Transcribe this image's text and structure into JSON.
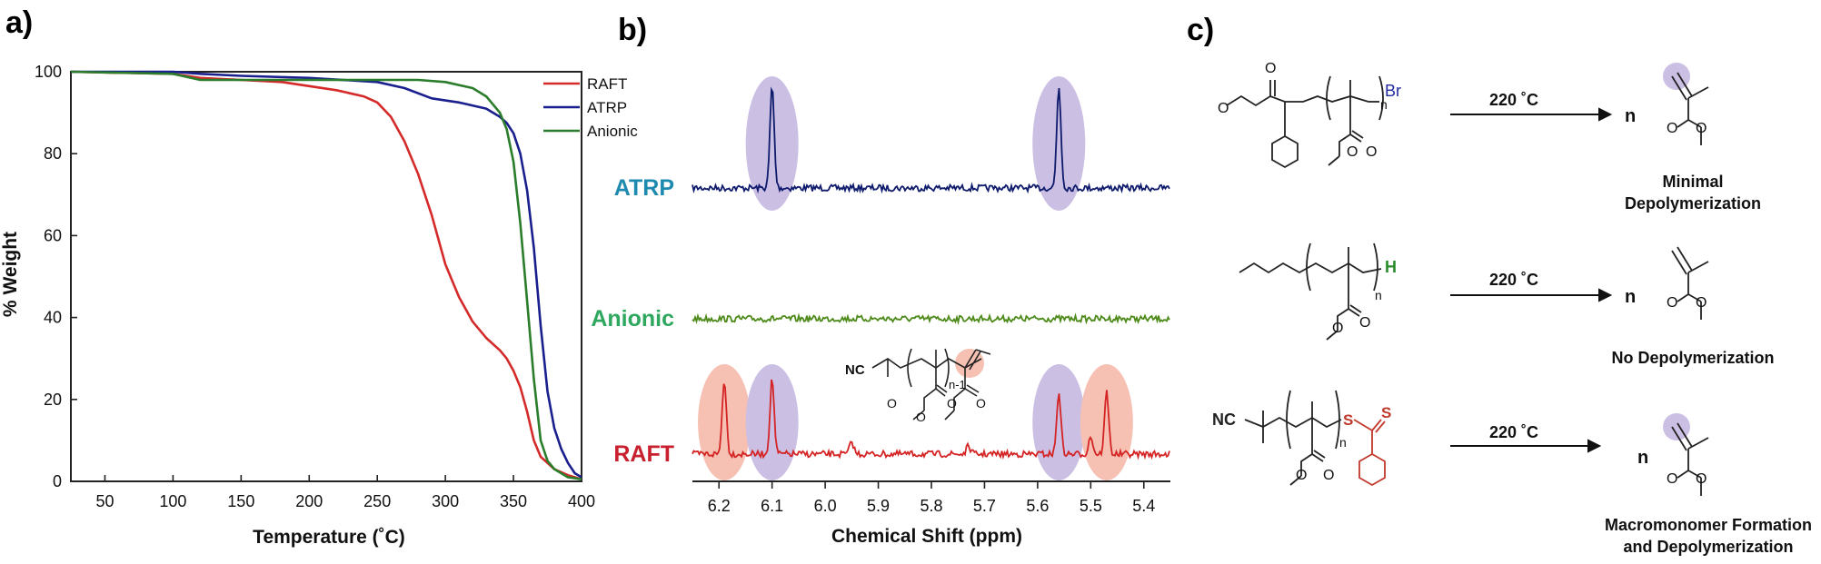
{
  "panels": {
    "a": "a)",
    "b": "b)",
    "c": "c)"
  },
  "chart_data": [
    {
      "type": "line",
      "panel": "a)",
      "xlabel": "Temperature (˚C)",
      "ylabel": "% Weight",
      "xlim": [
        25,
        400
      ],
      "ylim": [
        0,
        100
      ],
      "xticks": [
        50,
        100,
        150,
        200,
        250,
        300,
        350,
        400
      ],
      "yticks": [
        0,
        20,
        40,
        60,
        80,
        100
      ],
      "grid": false,
      "legend_position": "top-right",
      "series": [
        {
          "name": "RAFT",
          "color": "#d42a2a",
          "points": [
            [
              25,
              100
            ],
            [
              100,
              99.5
            ],
            [
              120,
              98.5
            ],
            [
              150,
              98
            ],
            [
              180,
              97.5
            ],
            [
              200,
              96.5
            ],
            [
              220,
              95.5
            ],
            [
              240,
              94
            ],
            [
              250,
              92.5
            ],
            [
              260,
              89
            ],
            [
              270,
              83
            ],
            [
              280,
              75
            ],
            [
              290,
              65
            ],
            [
              295,
              59
            ],
            [
              300,
              53
            ],
            [
              305,
              49
            ],
            [
              310,
              45
            ],
            [
              320,
              39
            ],
            [
              330,
              35
            ],
            [
              340,
              32
            ],
            [
              345,
              30
            ],
            [
              350,
              27
            ],
            [
              355,
              23
            ],
            [
              360,
              17
            ],
            [
              365,
              10
            ],
            [
              370,
              6
            ],
            [
              380,
              3
            ],
            [
              390,
              1.5
            ],
            [
              400,
              0.5
            ]
          ]
        },
        {
          "name": "ATRP",
          "color": "#1a1f8e",
          "points": [
            [
              25,
              100
            ],
            [
              100,
              100
            ],
            [
              120,
              99.5
            ],
            [
              150,
              99
            ],
            [
              200,
              98.5
            ],
            [
              250,
              97.5
            ],
            [
              270,
              96
            ],
            [
              290,
              93.5
            ],
            [
              310,
              92.5
            ],
            [
              330,
              91
            ],
            [
              340,
              89
            ],
            [
              345,
              87.5
            ],
            [
              350,
              85
            ],
            [
              355,
              80
            ],
            [
              360,
              71
            ],
            [
              365,
              57
            ],
            [
              370,
              38
            ],
            [
              375,
              22
            ],
            [
              380,
              13
            ],
            [
              385,
              8
            ],
            [
              390,
              4.5
            ],
            [
              395,
              2
            ],
            [
              400,
              1
            ]
          ]
        },
        {
          "name": "Anionic",
          "color": "#2a7d2a",
          "points": [
            [
              25,
              100
            ],
            [
              100,
              99.5
            ],
            [
              120,
              98
            ],
            [
              150,
              98
            ],
            [
              200,
              98
            ],
            [
              250,
              98
            ],
            [
              280,
              98
            ],
            [
              300,
              97.5
            ],
            [
              320,
              96
            ],
            [
              330,
              94
            ],
            [
              340,
              90
            ],
            [
              345,
              86
            ],
            [
              350,
              78
            ],
            [
              355,
              63
            ],
            [
              360,
              44
            ],
            [
              365,
              25
            ],
            [
              370,
              10
            ],
            [
              375,
              5
            ],
            [
              380,
              3
            ],
            [
              390,
              1
            ],
            [
              400,
              0.5
            ]
          ]
        }
      ]
    },
    {
      "type": "line",
      "panel": "b)",
      "xlabel": "Chemical Shift (ppm)",
      "xlim": [
        6.25,
        5.35
      ],
      "xticks": [
        6.2,
        6.1,
        6.0,
        5.9,
        5.8,
        5.7,
        5.6,
        5.5,
        5.4
      ],
      "reversed_x": true,
      "series": [
        {
          "name": "ATRP",
          "color": "#0e1a6b",
          "label_color": "#1f8ab0",
          "baseline": 0,
          "peaks": [
            {
              "ppm": 6.1,
              "height": 1.0
            },
            {
              "ppm": 5.56,
              "height": 1.0
            }
          ],
          "highlights": [
            {
              "ppm": 6.1,
              "color": "purple"
            },
            {
              "ppm": 5.56,
              "color": "purple"
            }
          ]
        },
        {
          "name": "Anionic",
          "color": "#4d8a1a",
          "label_color": "#2ea85e",
          "baseline": 0,
          "peaks": [],
          "highlights": []
        },
        {
          "name": "RAFT",
          "color": "#d42424",
          "label_color": "#c8202e",
          "baseline": 0,
          "peaks": [
            {
              "ppm": 6.19,
              "height": 0.75
            },
            {
              "ppm": 6.1,
              "height": 0.75
            },
            {
              "ppm": 5.95,
              "height": 0.12
            },
            {
              "ppm": 5.73,
              "height": 0.08
            },
            {
              "ppm": 5.56,
              "height": 0.62
            },
            {
              "ppm": 5.5,
              "height": 0.18
            },
            {
              "ppm": 5.47,
              "height": 0.62
            }
          ],
          "highlights": [
            {
              "ppm": 6.19,
              "color": "red"
            },
            {
              "ppm": 6.1,
              "color": "purple"
            },
            {
              "ppm": 5.56,
              "color": "purple"
            },
            {
              "ppm": 5.47,
              "color": "red"
            }
          ]
        }
      ],
      "inset_labels": {
        "nc": "NC",
        "n_minus_1": "n-1"
      }
    }
  ],
  "scheme": {
    "rows": [
      {
        "end_group": "Br",
        "end_group_color": "#1f2a9e",
        "n": "n",
        "condition": "220 ˚C",
        "product_n": "n",
        "result": [
          "Minimal",
          "Depolymerization"
        ]
      },
      {
        "end_group": "H",
        "end_group_color": "#2a8a2a",
        "n": "n",
        "condition": "220 ˚C",
        "product_n": "n",
        "result": [
          "No Depolymerization"
        ]
      },
      {
        "end_group": "NC",
        "end_group_color": "#222222",
        "n": "n",
        "s_labels": [
          "S",
          "S"
        ],
        "s_color": "#c0392b",
        "condition": "220 ˚C",
        "product_n": "n",
        "result": [
          "Macromonomer Formation",
          "and Depolymerization"
        ]
      }
    ]
  },
  "colors": {
    "highlight_purple": "#cbbfe4",
    "highlight_red": "#f6c0b2",
    "axis": "#222222",
    "bond": "#222222"
  }
}
